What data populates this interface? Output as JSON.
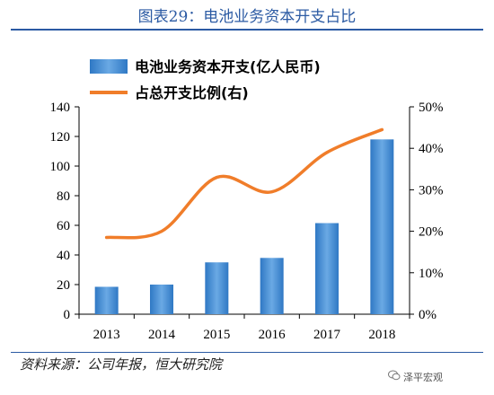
{
  "title": "图表29：电池业务资本开支占比",
  "source": "资料来源：公司年报，恒大研究院",
  "watermark": "泽平宏观",
  "colors": {
    "bar": "#2f78c4",
    "bar_light": "#6aa9e4",
    "line": "#f07d2a",
    "title": "#2b5aa3"
  },
  "chart_data": {
    "type": "bar",
    "categories": [
      "2013",
      "2014",
      "2015",
      "2016",
      "2017",
      "2018"
    ],
    "series": [
      {
        "name": "电池业务资本开支(亿人民币)",
        "type": "bar",
        "axis": "left",
        "values": [
          18.5,
          20,
          35,
          38,
          61.5,
          118
        ]
      },
      {
        "name": "占总开支比例(右)",
        "type": "line",
        "axis": "right",
        "values": [
          0.185,
          0.2,
          0.33,
          0.295,
          0.39,
          0.445
        ]
      }
    ],
    "ylim": [
      0,
      140
    ],
    "y_ticks": [
      "0",
      "20",
      "40",
      "60",
      "80",
      "100",
      "120",
      "140"
    ],
    "y2lim": [
      0,
      0.5
    ],
    "y2_ticks": [
      "0%",
      "10%",
      "20%",
      "30%",
      "40%",
      "50%"
    ],
    "legend_position": "top",
    "grid": false
  }
}
